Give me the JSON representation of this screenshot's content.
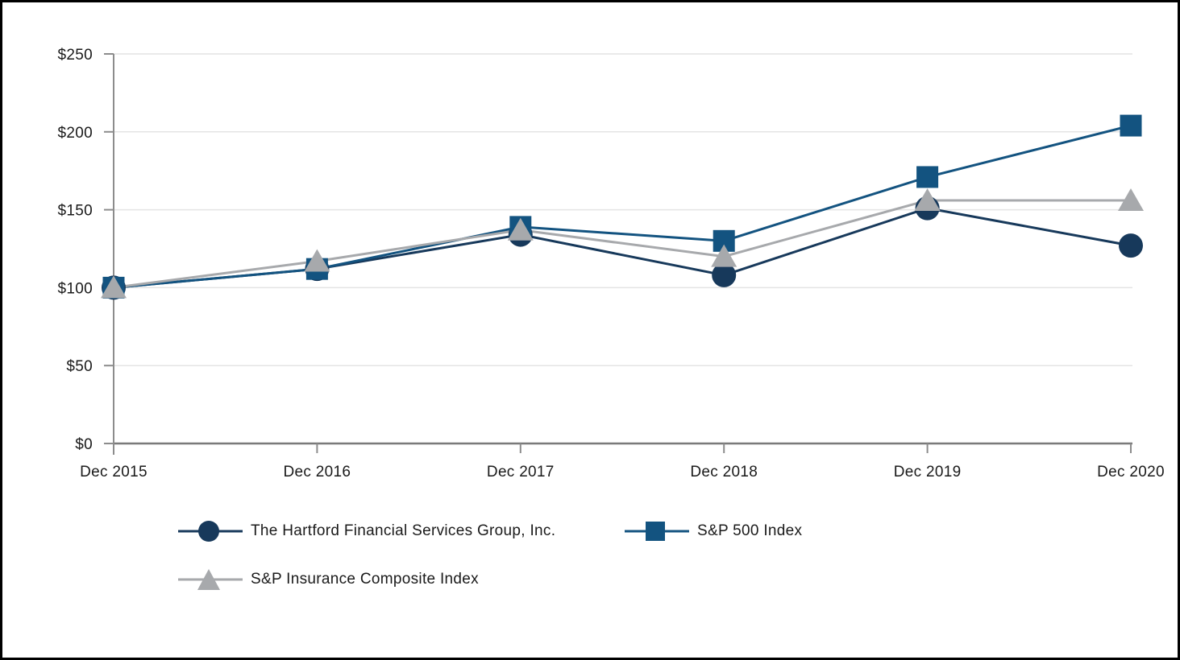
{
  "styles": {
    "background": "#FFFFFF",
    "frame_border": "#000000",
    "grid_color": "#E4E4E4",
    "axis_line_color": "#7A7A7A",
    "tick_color": "#8C8C8C",
    "text_color": "#1A1A1A"
  },
  "chart_data": {
    "type": "line",
    "title": "",
    "xlabel": "",
    "ylabel": "",
    "x": [
      "Dec 2015",
      "Dec 2016",
      "Dec 2017",
      "Dec 2018",
      "Dec 2019",
      "Dec 2020"
    ],
    "ylim": [
      0,
      250
    ],
    "ytick_step": 50,
    "ytick_labels": [
      "$0",
      "$50",
      "$100",
      "$150",
      "$200",
      "$250"
    ],
    "grid": true,
    "legend_position": "bottom-left",
    "series": [
      {
        "name": "The Hartford Financial Services Group, Inc.",
        "marker": "circle",
        "color": "#17395B",
        "values": [
          100,
          112,
          134,
          108,
          151,
          127
        ]
      },
      {
        "name": "S&P 500 Index",
        "marker": "square",
        "color": "#135380",
        "values": [
          100,
          112,
          139,
          130,
          171,
          204
        ]
      },
      {
        "name": "S&P Insurance Composite Index",
        "marker": "triangle",
        "color": "#A7A9AC",
        "values": [
          100,
          117,
          137,
          120,
          156,
          156
        ]
      }
    ]
  }
}
